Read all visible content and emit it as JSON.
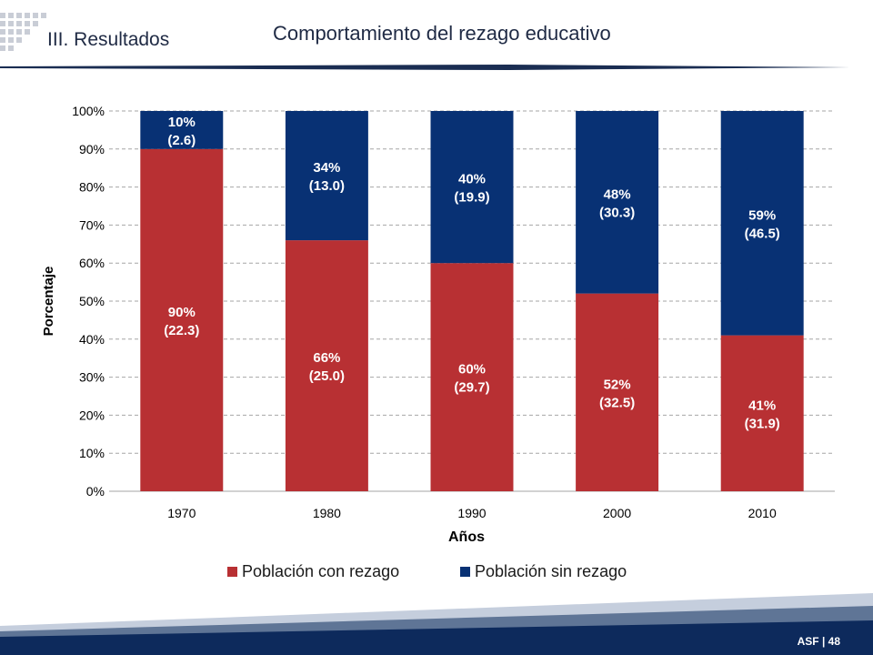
{
  "header": {
    "section": "III. Resultados",
    "title": "Comportamiento del rezago educativo"
  },
  "footer": {
    "page": "ASF | 48"
  },
  "colors": {
    "con_rezago": "#b83033",
    "sin_rezago": "#083174",
    "navy": "#0d2a5c",
    "grid": "#a6a6a6",
    "footer_light": "#c5cedd",
    "footer_mid": "#5f7596"
  },
  "chart_data": {
    "type": "bar",
    "stacked": true,
    "categories": [
      "1970",
      "1980",
      "1990",
      "2000",
      "2010"
    ],
    "series": [
      {
        "name": "Población con rezago",
        "values": [
          90,
          66,
          60,
          52,
          41
        ],
        "labels": [
          "90%\n(22.3)",
          "66%\n(25.0)",
          "60%\n(29.7)",
          "52%\n(32.5)",
          "41%\n(31.9)"
        ]
      },
      {
        "name": "Población sin rezago",
        "values": [
          10,
          34,
          40,
          48,
          59
        ],
        "labels": [
          "10%\n(2.6)",
          "34%\n(13.0)",
          "40%\n(19.9)",
          "48%\n(30.3)",
          "59%\n(46.5)"
        ]
      }
    ],
    "xlabel": "Años",
    "ylabel": "Porcentaje",
    "ylim": [
      0,
      100
    ],
    "yticks": [
      "0%",
      "10%",
      "20%",
      "30%",
      "40%",
      "50%",
      "60%",
      "70%",
      "80%",
      "90%",
      "100%"
    ],
    "grid": true,
    "legend": "bottom"
  }
}
